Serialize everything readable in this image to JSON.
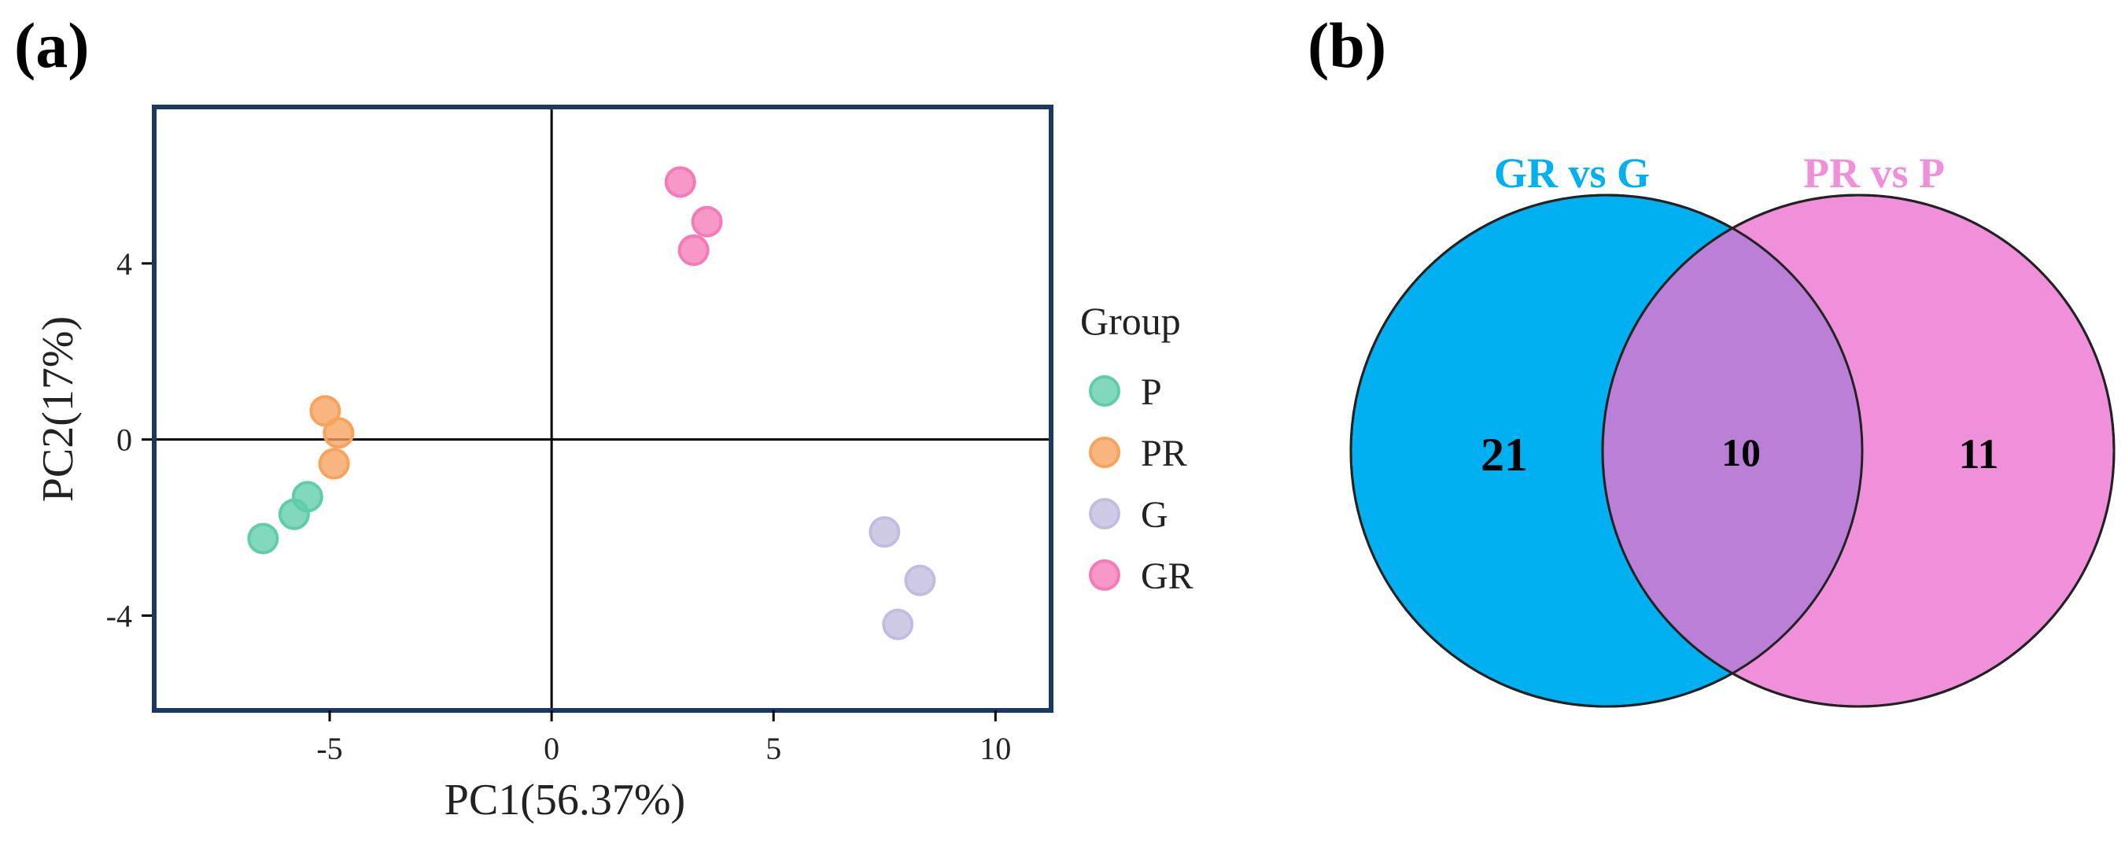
{
  "chart_data": [
    {
      "panel_label": "(a)",
      "type": "scatter",
      "title": "",
      "xlabel": "PC1(56.37%)",
      "ylabel": "PC2(17%)",
      "xlim": [
        -8.9,
        11.2
      ],
      "ylim": [
        -6.1,
        7.5
      ],
      "xticks": [
        -5,
        0,
        5,
        10
      ],
      "xtick_labels": [
        "-5",
        "0",
        "5",
        "10"
      ],
      "yticks": [
        -4,
        0,
        4
      ],
      "ytick_labels": [
        "-4",
        "0",
        "4"
      ],
      "reference_lines": {
        "x": 0,
        "y": 0
      },
      "grid": false,
      "legend": {
        "title": "Group",
        "position": "right"
      },
      "series": [
        {
          "name": "P",
          "color": "#5fcdaa",
          "points": [
            [
              -5.5,
              -1.3
            ],
            [
              -5.8,
              -1.7
            ],
            [
              -6.5,
              -2.25
            ]
          ]
        },
        {
          "name": "PR",
          "color": "#f9a25c",
          "points": [
            [
              -5.1,
              0.65
            ],
            [
              -4.8,
              0.15
            ],
            [
              -4.9,
              -0.55
            ]
          ]
        },
        {
          "name": "G",
          "color": "#c2bde0",
          "points": [
            [
              7.5,
              -2.1
            ],
            [
              8.3,
              -3.2
            ],
            [
              7.8,
              -4.2
            ]
          ]
        },
        {
          "name": "GR",
          "color": "#f57bb8",
          "points": [
            [
              2.9,
              5.85
            ],
            [
              3.5,
              4.95
            ],
            [
              3.2,
              4.3
            ]
          ]
        }
      ]
    },
    {
      "panel_label": "(b)",
      "type": "venn",
      "sets": [
        {
          "name": "GR vs G",
          "color": "#00b0f0",
          "label_color": "#00b0f0"
        },
        {
          "name": "PR vs P",
          "color": "#f090da",
          "label_color": "#f090da"
        }
      ],
      "overlap_color": "#bc7fd8",
      "counts": {
        "only_first": "21",
        "intersection": "10",
        "only_second": "11"
      }
    }
  ]
}
